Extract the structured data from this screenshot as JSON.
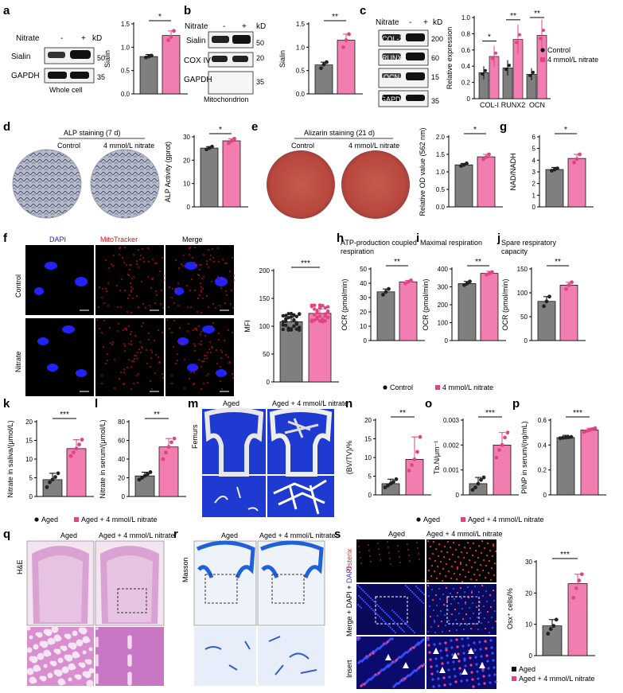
{
  "colors": {
    "control": "#7f7f7f",
    "nitrate": "#f27db1",
    "nitrate_dark": "#e0457f",
    "dapi": "#1a1aff",
    "mito": "#e01010",
    "osterix": "#ff2020",
    "masson": "#1f5fd6",
    "he": "#c266b8"
  },
  "labels": {
    "a": "a",
    "b": "b",
    "c": "c",
    "d": "d",
    "e": "e",
    "f": "f",
    "g": "g",
    "h": "h",
    "i": "i",
    "j": "j",
    "k": "k",
    "l": "l",
    "m": "m",
    "n": "n",
    "o": "o",
    "p": "p",
    "q": "q",
    "r": "r",
    "s": "s"
  },
  "panel_a": {
    "nitrate": "Nitrate",
    "minus": "-",
    "plus": "+",
    "kd": "kD",
    "rows": [
      "Sialin",
      "GAPDH"
    ],
    "markers": [
      "50",
      "35"
    ],
    "caption": "Whole cell"
  },
  "panel_b": {
    "nitrate": "Nitrate",
    "minus": "-",
    "plus": "+",
    "kd": "kD",
    "rows": [
      "Sialin",
      "COX IV",
      "GAPDH"
    ],
    "markers": [
      "50",
      "20",
      "35"
    ],
    "caption": "Mitochondrion"
  },
  "panel_c": {
    "nitrate": "Nitrate",
    "minus": "-",
    "plus": "+",
    "kd": "kD",
    "rows": [
      "COL-1",
      "RUNX2",
      "OCN",
      "GAPDH"
    ],
    "markers": [
      "200",
      "60",
      "15",
      "35"
    ]
  },
  "panel_d": {
    "title": "ALP staining (7 d)",
    "left": "Control",
    "right": "4 mmol/L nitrate"
  },
  "panel_e": {
    "title": "Alizarin staining (21 d)",
    "left": "Control",
    "right": "4 mmol/L nitrate"
  },
  "panel_f": {
    "cols": [
      "DAPI",
      "MitoTracker",
      "Merge"
    ],
    "rows": [
      "Control",
      "Nitrate"
    ]
  },
  "panel_m": {
    "left": "Aged",
    "right": "Aged + 4 mmol/L nitrate",
    "side": "Femurs"
  },
  "panel_q": {
    "left": "Aged",
    "right": "Aged + 4 mmol/L nitrate",
    "side": "H&E"
  },
  "panel_r": {
    "left": "Aged",
    "right": "Aged + 4 mmol/L nitrate",
    "side": "Masson"
  },
  "panel_s": {
    "left": "Aged",
    "right": "Aged + 4 mmol/L nitrate",
    "rows": [
      "Osterix",
      "Merge + DAPI",
      "Insert"
    ],
    "dapi": "DAPI",
    "plus": " + "
  },
  "legends": {
    "c": [
      "Control",
      "4 mmol/L nitrate"
    ],
    "hij": [
      "Control",
      "4 mmol/L nitrate"
    ],
    "kl": [
      "Aged",
      "Aged + 4 mmol/L nitrate"
    ],
    "nop": [
      "Aged",
      "Aged + 4 mmol/L nitrate"
    ],
    "s": [
      "Aged",
      "Aged + 4 mmol/L nitrate"
    ]
  },
  "chart_data": [
    {
      "id": "a",
      "type": "bar",
      "categories": [
        "-",
        "+"
      ],
      "values": [
        0.8,
        1.25
      ],
      "ylabel": "Sialin",
      "ylim": [
        0,
        1.5
      ],
      "yticks": [
        0,
        0.5,
        1.0,
        1.5
      ],
      "yticklabels": [
        "0.0",
        "0.5",
        "1.0",
        "1.5"
      ],
      "sig": "*",
      "points": [
        [
          0.78,
          0.8,
          0.82
        ],
        [
          1.15,
          1.22,
          1.35
        ]
      ]
    },
    {
      "id": "b",
      "type": "bar",
      "categories": [
        "-",
        "+"
      ],
      "values": [
        0.62,
        1.15
      ],
      "ylabel": "Sialin",
      "ylim": [
        0,
        1.5
      ],
      "yticks": [
        0,
        0.5,
        1.0,
        1.5
      ],
      "yticklabels": [
        "0.0",
        "0.5",
        "1.0",
        "1.5"
      ],
      "sig": "**",
      "points": [
        [
          0.55,
          0.63,
          0.68
        ],
        [
          1.0,
          1.15,
          1.28
        ]
      ]
    },
    {
      "id": "c",
      "type": "bar",
      "categories": [
        "COL-I",
        "RUNX2",
        "OCN"
      ],
      "series": [
        {
          "name": "Control",
          "values": [
            0.32,
            0.38,
            0.3
          ]
        },
        {
          "name": "4 mmol/L nitrate",
          "values": [
            0.52,
            0.73,
            0.78
          ]
        }
      ],
      "ylabel": "Relative expression",
      "ylim": [
        0,
        1.0
      ],
      "yticks": [
        0,
        0.2,
        0.4,
        0.6,
        0.8,
        1.0
      ],
      "yticklabels": [
        "0",
        "0.2",
        "0.4",
        "0.6",
        "0.8",
        "1.0"
      ],
      "sig": [
        "*",
        "**",
        "**"
      ]
    },
    {
      "id": "d",
      "type": "bar",
      "categories": [
        "Control",
        "4 mmol/L nitrate"
      ],
      "values": [
        25.2,
        28.3
      ],
      "ylabel": "ALP Activity (gprot)",
      "ylim": [
        0,
        30
      ],
      "yticks": [
        0,
        10,
        20,
        30
      ],
      "yticklabels": [
        "0",
        "10",
        "20",
        "30"
      ],
      "sig": "*",
      "points": [
        [
          24.6,
          25.2,
          25.8
        ],
        [
          27.3,
          28.2,
          29.2
        ]
      ]
    },
    {
      "id": "e",
      "type": "bar",
      "categories": [
        "Control",
        "4 mmol/L nitrate"
      ],
      "values": [
        1.2,
        1.43
      ],
      "ylabel": "Relative OD value (562 nm)",
      "ylim": [
        0,
        2.0
      ],
      "yticks": [
        0,
        0.5,
        1.0,
        1.5,
        2.0
      ],
      "yticklabels": [
        "0.0",
        "0.5",
        "1.0",
        "1.5",
        "2.0"
      ],
      "sig": "*",
      "points": [
        [
          1.17,
          1.2,
          1.24
        ],
        [
          1.36,
          1.42,
          1.5
        ]
      ]
    },
    {
      "id": "g",
      "type": "bar",
      "categories": [
        "Control",
        "4 mmol/L nitrate"
      ],
      "values": [
        3.2,
        4.15
      ],
      "ylabel": "NAD/NADH",
      "ylim": [
        0,
        6
      ],
      "yticks": [
        0,
        1,
        2,
        3,
        4,
        5,
        6
      ],
      "yticklabels": [
        "0",
        "1",
        "2",
        "3",
        "4",
        "5",
        "6"
      ],
      "sig": "*",
      "points": [
        [
          3.1,
          3.2,
          3.3
        ],
        [
          3.8,
          4.1,
          4.5
        ]
      ]
    },
    {
      "id": "f",
      "type": "bar",
      "categories": [
        "Control",
        "Nitrate"
      ],
      "values": [
        108,
        123
      ],
      "ylabel": "MFI",
      "ylim": [
        0,
        200
      ],
      "yticks": [
        0,
        50,
        100,
        150,
        200
      ],
      "yticklabels": [
        "0",
        "50",
        "100",
        "150",
        "200"
      ],
      "sig": "***"
    },
    {
      "id": "h",
      "type": "bar",
      "title": "ATP-production coupled respiration",
      "categories": [
        "Control",
        "4 mmol/L nitrate"
      ],
      "values": [
        34,
        41
      ],
      "ylabel": "OCR (pmol/min)",
      "ylim": [
        0,
        50
      ],
      "yticks": [
        0,
        10,
        20,
        30,
        40,
        50
      ],
      "yticklabels": [
        "0",
        "10",
        "20",
        "30",
        "40",
        "50"
      ],
      "sig": "**",
      "points": [
        [
          32,
          34,
          36
        ],
        [
          40,
          41,
          42
        ]
      ]
    },
    {
      "id": "i",
      "type": "bar",
      "title": "Maximal respiration",
      "categories": [
        "Control",
        "4 mmol/L nitrate"
      ],
      "values": [
        318,
        375
      ],
      "ylabel": "OCR (pmol/min)",
      "ylim": [
        0,
        400
      ],
      "yticks": [
        0,
        100,
        200,
        300,
        400
      ],
      "yticklabels": [
        "0",
        "100",
        "200",
        "300",
        "400"
      ],
      "sig": "**",
      "points": [
        [
          310,
          318,
          330
        ],
        [
          368,
          375,
          382
        ]
      ]
    },
    {
      "id": "j",
      "type": "bar",
      "title": "Spare respiratory capacity",
      "categories": [
        "Control",
        "4 mmol/L nitrate"
      ],
      "values": [
        82,
        116
      ],
      "ylabel": "OCR (pmol/min)",
      "ylim": [
        0,
        150
      ],
      "yticks": [
        0,
        50,
        100,
        150
      ],
      "yticklabels": [
        "0",
        "50",
        "100",
        "150"
      ],
      "sig": "**",
      "points": [
        [
          72,
          82,
          92
        ],
        [
          108,
          116,
          122
        ]
      ]
    },
    {
      "id": "k",
      "type": "bar",
      "categories": [
        "Aged",
        "Aged + 4 mmol/L nitrate"
      ],
      "values": [
        4.5,
        12.8
      ],
      "ylabel": "Nitrate in saliva/(μmol/L)",
      "ylim": [
        0,
        20
      ],
      "yticks": [
        0,
        5,
        10,
        15,
        20
      ],
      "yticklabels": [
        "0",
        "5",
        "10",
        "15",
        "20"
      ],
      "sig": "***",
      "points": [
        [
          2.5,
          3.8,
          4.5,
          5.2,
          6.2
        ],
        [
          10.8,
          11.8,
          12.8,
          13.9,
          15.2
        ]
      ]
    },
    {
      "id": "l",
      "type": "bar",
      "categories": [
        "Aged",
        "Aged + 4 mmol/L nitrate"
      ],
      "values": [
        22,
        53
      ],
      "ylabel": "Nitrate in serum/(μmol/L)",
      "ylim": [
        0,
        80
      ],
      "yticks": [
        0,
        20,
        40,
        60,
        80
      ],
      "yticklabels": [
        "0",
        "20",
        "40",
        "60",
        "80"
      ],
      "sig": "**",
      "points": [
        [
          18,
          20,
          22,
          24,
          26
        ],
        [
          40,
          47,
          53,
          58,
          62
        ]
      ]
    },
    {
      "id": "n",
      "type": "bar",
      "categories": [
        "Aged",
        "Aged + 4 mmol/L nitrate"
      ],
      "values": [
        3,
        9.5
      ],
      "ylabel": "(BV/TV)/%",
      "ylim": [
        0,
        20
      ],
      "yticks": [
        0,
        5,
        10,
        15,
        20
      ],
      "yticklabels": [
        "0",
        "5",
        "10",
        "15",
        "20"
      ],
      "sig": "**",
      "points": [
        [
          2,
          2.5,
          3,
          3.5,
          4.2
        ],
        [
          6.5,
          8,
          9.5,
          11.5,
          15.5
        ]
      ]
    },
    {
      "id": "o",
      "type": "bar",
      "categories": [
        "Aged",
        "Aged + 4 mmol/L nitrate"
      ],
      "values": [
        0.00045,
        0.002
      ],
      "ylabel": "Tb.N/μm⁻¹",
      "ylim": [
        0,
        0.003
      ],
      "yticks": [
        0,
        0.001,
        0.002,
        0.003
      ],
      "yticklabels": [
        "0",
        "0.001",
        "0.002",
        "0.003"
      ],
      "sig": "***",
      "points": [
        [
          0.0002,
          0.0003,
          0.00045,
          0.0006,
          0.0007
        ],
        [
          0.0015,
          0.0018,
          0.002,
          0.0023,
          0.0025
        ]
      ]
    },
    {
      "id": "p",
      "type": "bar",
      "categories": [
        "Aged",
        "Aged + 4 mmol/L nitrate"
      ],
      "values": [
        0.46,
        0.52
      ],
      "ylabel": "PINP in serum/(ng/mL)",
      "ylim": [
        0,
        0.6
      ],
      "yticks": [
        0,
        0.2,
        0.4,
        0.6
      ],
      "yticklabels": [
        "0",
        "0.2",
        "0.4",
        "0.6"
      ],
      "sig": "***",
      "points": [
        [
          0.455,
          0.458,
          0.46,
          0.462,
          0.465
        ],
        [
          0.505,
          0.512,
          0.52,
          0.528,
          0.535
        ]
      ]
    },
    {
      "id": "s",
      "type": "bar",
      "categories": [
        "Aged",
        "Aged + 4 mmol/L nitrate"
      ],
      "values": [
        9.5,
        23
      ],
      "ylabel": "Osx⁺ cells/%",
      "ylim": [
        0,
        30
      ],
      "yticks": [
        0,
        10,
        20,
        30
      ],
      "yticklabels": [
        "0",
        "10",
        "20",
        "30"
      ],
      "sig": "***",
      "points": [
        [
          7,
          8.5,
          9.5,
          11.5
        ],
        [
          18.5,
          21.5,
          24,
          26
        ]
      ]
    }
  ]
}
